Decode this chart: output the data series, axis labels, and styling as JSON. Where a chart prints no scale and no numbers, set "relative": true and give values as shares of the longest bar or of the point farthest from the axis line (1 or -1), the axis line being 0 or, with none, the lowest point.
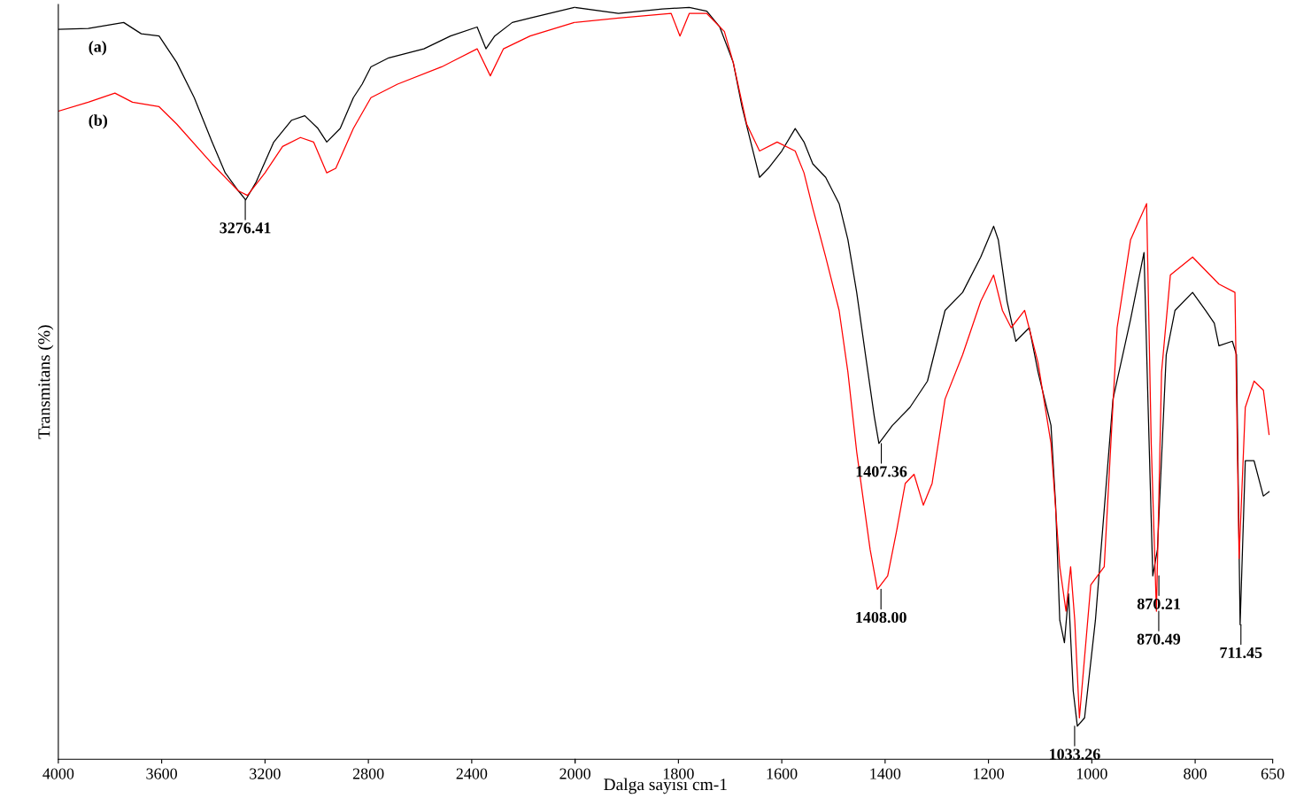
{
  "chart_data": [
    {
      "type": "line",
      "relative": true,
      "ylabel": "Transmitans (%)",
      "xlim": [
        4000,
        2000
      ],
      "xticks": [
        4000,
        3600,
        3200,
        2800,
        2400,
        {
          "value": 2000,
          "label": null
        }
      ],
      "tick_labels": "x",
      "grid": false,
      "marker": "none",
      "line_style": "solid",
      "series": [
        {
          "name": "(a)",
          "color": "#000000",
          "x": [
            4000,
            3884,
            3747,
            3679,
            3610,
            3542,
            3474,
            3405,
            3354,
            3303,
            3275,
            3234,
            3166,
            3097,
            3046,
            2995,
            2961,
            2909,
            2858,
            2824,
            2790,
            2721,
            2585,
            2482,
            2379,
            2345,
            2311,
            2243,
            2174,
            2003,
            2000
          ],
          "values": [
            0.971,
            0.972,
            0.98,
            0.965,
            0.962,
            0.927,
            0.88,
            0.821,
            0.78,
            0.756,
            0.744,
            0.768,
            0.821,
            0.85,
            0.856,
            0.839,
            0.821,
            0.839,
            0.88,
            0.898,
            0.921,
            0.933,
            0.945,
            0.962,
            0.974,
            0.945,
            0.962,
            0.98,
            0.986,
            1.0,
            1.0
          ]
        },
        {
          "name": "(b)",
          "color": "#ff0000",
          "x": [
            4000,
            3884,
            3781,
            3713,
            3610,
            3542,
            3405,
            3303,
            3268,
            3200,
            3132,
            3063,
            3012,
            2961,
            2926,
            2858,
            2790,
            2687,
            2516,
            2379,
            2328,
            2277,
            2174,
            2003,
            2000
          ],
          "values": [
            0.862,
            0.874,
            0.886,
            0.874,
            0.868,
            0.845,
            0.792,
            0.756,
            0.75,
            0.78,
            0.815,
            0.827,
            0.821,
            0.78,
            0.786,
            0.839,
            0.88,
            0.898,
            0.921,
            0.945,
            0.909,
            0.945,
            0.962,
            0.98,
            0.98
          ]
        }
      ],
      "annotations": [
        {
          "text": "3276.41",
          "x": 3276.41,
          "y": 0.744
        }
      ]
    },
    {
      "type": "line",
      "relative": true,
      "xlabel": "Dalga sayısı cm-1",
      "xlim": [
        2000,
        650
      ],
      "xticks": [
        2000,
        1800,
        1600,
        1400,
        1200,
        1000,
        800,
        650
      ],
      "tick_labels": "x",
      "grid": false,
      "marker": "none",
      "line_style": "solid",
      "series": [
        {
          "color": "#000000",
          "x": [
            2000,
            1916,
            1831,
            1779,
            1745,
            1720,
            1694,
            1677,
            1660,
            1643,
            1626,
            1600,
            1574,
            1557,
            1540,
            1515,
            1489,
            1472,
            1455,
            1438,
            1421,
            1412,
            1386,
            1352,
            1318,
            1284,
            1250,
            1215,
            1190,
            1181,
            1164,
            1147,
            1121,
            1104,
            1079,
            1070,
            1062,
            1053,
            1045,
            1036,
            1028,
            1014,
            993,
            959,
            925,
            899,
            891,
            882,
            873,
            856,
            839,
            805,
            780,
            763,
            754,
            728,
            720,
            713,
            703,
            686,
            668,
            657
          ],
          "values": [
            1.0,
            0.992,
            0.998,
            1.0,
            0.995,
            0.974,
            0.927,
            0.868,
            0.821,
            0.774,
            0.786,
            0.809,
            0.839,
            0.821,
            0.792,
            0.774,
            0.739,
            0.691,
            0.621,
            0.538,
            0.456,
            0.42,
            0.444,
            0.468,
            0.503,
            0.597,
            0.621,
            0.668,
            0.709,
            0.691,
            0.609,
            0.556,
            0.574,
            0.515,
            0.444,
            0.338,
            0.185,
            0.155,
            0.22,
            0.091,
            0.044,
            0.055,
            0.185,
            0.479,
            0.585,
            0.674,
            0.468,
            0.244,
            0.279,
            0.538,
            0.597,
            0.621,
            0.597,
            0.58,
            0.55,
            0.556,
            0.538,
            0.179,
            0.397,
            0.397,
            0.35,
            0.356
          ]
        },
        {
          "color": "#ff0000",
          "x": [
            2000,
            1916,
            1814,
            1797,
            1779,
            1745,
            1711,
            1694,
            1668,
            1643,
            1609,
            1574,
            1557,
            1540,
            1515,
            1489,
            1472,
            1455,
            1429,
            1415,
            1395,
            1378,
            1361,
            1344,
            1326,
            1309,
            1284,
            1250,
            1215,
            1190,
            1173,
            1156,
            1130,
            1104,
            1079,
            1062,
            1050,
            1041,
            1033,
            1024,
            1002,
            976,
            951,
            925,
            894,
            885,
            875,
            865,
            848,
            805,
            754,
            723,
            715,
            703,
            686,
            668,
            657
          ],
          "values": [
            0.98,
            0.986,
            0.992,
            0.962,
            0.992,
            0.992,
            0.968,
            0.927,
            0.845,
            0.809,
            0.821,
            0.809,
            0.78,
            0.733,
            0.668,
            0.597,
            0.515,
            0.409,
            0.279,
            0.226,
            0.244,
            0.303,
            0.367,
            0.379,
            0.338,
            0.367,
            0.479,
            0.538,
            0.609,
            0.644,
            0.597,
            0.574,
            0.597,
            0.527,
            0.42,
            0.256,
            0.197,
            0.256,
            0.185,
            0.055,
            0.232,
            0.256,
            0.574,
            0.691,
            0.739,
            0.42,
            0.197,
            0.515,
            0.644,
            0.668,
            0.632,
            0.621,
            0.267,
            0.468,
            0.503,
            0.491,
            0.432
          ]
        }
      ],
      "annotations": [
        {
          "text": "1407.36",
          "x": 1407.36,
          "y": 0.42
        },
        {
          "text": "1408.00",
          "x": 1408.0,
          "y": 0.226
        },
        {
          "text": "1033.26",
          "x": 1033.26,
          "y": 0.044
        },
        {
          "text": "870.21",
          "x": 870.21,
          "y": 0.244
        },
        {
          "text": "870.49",
          "x": 870.49,
          "y": 0.197
        },
        {
          "text": "711.45",
          "x": 711.45,
          "y": 0.179
        }
      ]
    }
  ]
}
